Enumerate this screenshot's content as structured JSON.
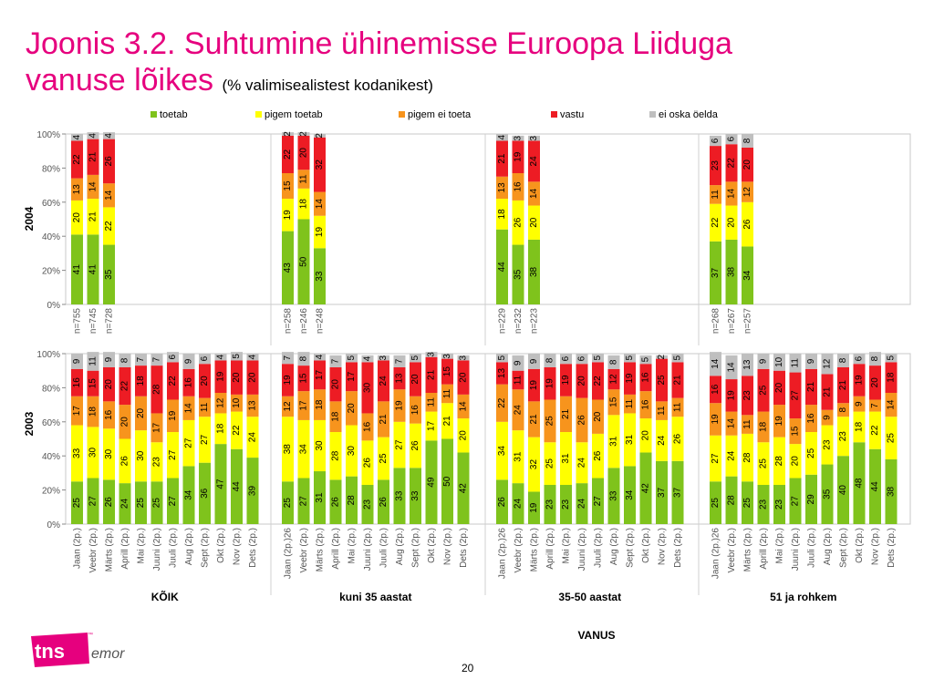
{
  "title": {
    "line1": "Joonis 3.2. Suhtumine ühinemisse Euroopa Liiduga",
    "line2": "vanuse lõikes",
    "subtitle": "(% valimisealistest kodanikest)"
  },
  "page_number": "20",
  "logo": {
    "main": "tns",
    "sub": "emor",
    "tm": "™"
  },
  "colors": {
    "toetab": "#7fc31c",
    "pigem_toetab": "#ffff00",
    "pigem_ei_toeta": "#f7941d",
    "vastu": "#ed1c24",
    "ei_oska": "#bfbfbf",
    "title": "#e6007e"
  },
  "chart_data": [
    {
      "type": "bar",
      "stacked": true,
      "row_label": "2004",
      "ylim": [
        0,
        100
      ],
      "yticks": [
        "0%",
        "20%",
        "40%",
        "60%",
        "80%",
        "100%"
      ],
      "legend": [
        "toetab",
        "pigem toetab",
        "pigem ei toeta",
        "vastu",
        "ei oska öelda"
      ],
      "groups": [
        {
          "name": "KÕIK",
          "bars": [
            {
              "label": "n=755",
              "values": [
                41,
                20,
                13,
                22,
                4
              ]
            },
            {
              "label": "n=745",
              "values": [
                41,
                21,
                14,
                21,
                4
              ]
            },
            {
              "label": "n=728",
              "values": [
                35,
                22,
                14,
                26,
                4
              ]
            }
          ]
        },
        {
          "name": "kuni 35 aastat",
          "bars": [
            {
              "label": "n=258",
              "values": [
                43,
                19,
                15,
                22,
                2
              ]
            },
            {
              "label": "n=246",
              "values": [
                50,
                18,
                11,
                20,
                2
              ]
            },
            {
              "label": "n=248",
              "values": [
                33,
                19,
                14,
                32,
                2
              ]
            }
          ]
        },
        {
          "name": "35-50 aastat",
          "bars": [
            {
              "label": "n=229",
              "values": [
                44,
                18,
                13,
                21,
                4
              ]
            },
            {
              "label": "n=232",
              "values": [
                35,
                26,
                16,
                19,
                3
              ]
            },
            {
              "label": "n=223",
              "values": [
                38,
                20,
                14,
                24,
                3
              ]
            }
          ]
        },
        {
          "name": "51 ja rohkem",
          "bars": [
            {
              "label": "n=268",
              "values": [
                37,
                22,
                11,
                23,
                6
              ]
            },
            {
              "label": "n=267",
              "values": [
                38,
                20,
                14,
                22,
                6
              ]
            },
            {
              "label": "n=257",
              "values": [
                34,
                26,
                12,
                20,
                8
              ]
            }
          ]
        }
      ]
    },
    {
      "type": "bar",
      "stacked": true,
      "row_label": "2003",
      "ylim": [
        0,
        100
      ],
      "yticks": [
        "0%",
        "20%",
        "40%",
        "60%",
        "80%",
        "100%"
      ],
      "groups": [
        {
          "name": "KÕIK",
          "bars": [
            {
              "label": "Jaan (2p.)",
              "values": [
                25,
                33,
                17,
                16,
                9
              ]
            },
            {
              "label": "Veebr (2p.)",
              "values": [
                27,
                30,
                18,
                15,
                11
              ]
            },
            {
              "label": "Märts (2p.)",
              "values": [
                26,
                30,
                16,
                20,
                9
              ]
            },
            {
              "label": "Aprill (2p.)",
              "values": [
                24,
                26,
                20,
                22,
                8
              ]
            },
            {
              "label": "Mai (2p.)",
              "values": [
                25,
                30,
                20,
                18,
                7
              ]
            },
            {
              "label": "Juuni (2p.)",
              "values": [
                25,
                23,
                17,
                28,
                7
              ]
            },
            {
              "label": "Juuli (2p.)",
              "values": [
                27,
                27,
                19,
                22,
                6
              ]
            },
            {
              "label": "Aug (2p.)",
              "values": [
                34,
                27,
                14,
                16,
                9
              ]
            },
            {
              "label": "Sept (2p.)",
              "values": [
                36,
                27,
                11,
                20,
                6
              ]
            },
            {
              "label": "Okt (2p.)",
              "values": [
                47,
                18,
                12,
                19,
                4
              ]
            },
            {
              "label": "Nov (2p.)",
              "values": [
                44,
                22,
                10,
                20,
                5
              ]
            },
            {
              "label": "Dets (2p.)",
              "values": [
                39,
                24,
                13,
                20,
                4
              ]
            }
          ]
        },
        {
          "name": "kuni 35 aastat",
          "bars": [
            {
              "label": "Jaan (2p.)26",
              "values": [
                25,
                38,
                12,
                19,
                7
              ]
            },
            {
              "label": "Veebr (2p.)",
              "values": [
                27,
                34,
                17,
                15,
                8
              ]
            },
            {
              "label": "Märts (2p.)",
              "values": [
                31,
                30,
                18,
                17,
                4
              ]
            },
            {
              "label": "Aprill (2p.)",
              "values": [
                26,
                28,
                18,
                20,
                7
              ]
            },
            {
              "label": "Mai (2p.)",
              "values": [
                28,
                30,
                20,
                17,
                5
              ]
            },
            {
              "label": "Juuni (2p.)",
              "values": [
                23,
                26,
                16,
                30,
                4
              ]
            },
            {
              "label": "Juuli (2p.)",
              "values": [
                26,
                25,
                21,
                24,
                3
              ]
            },
            {
              "label": "Aug (2p.)",
              "values": [
                33,
                27,
                19,
                13,
                7
              ]
            },
            {
              "label": "Sept (2p.)",
              "values": [
                33,
                26,
                16,
                20,
                5
              ]
            },
            {
              "label": "Okt (2p.)",
              "values": [
                49,
                17,
                11,
                21,
                3
              ]
            },
            {
              "label": "Nov (2p.)",
              "values": [
                50,
                21,
                11,
                15,
                3
              ]
            },
            {
              "label": "Dets (2p.)",
              "values": [
                42,
                20,
                14,
                20,
                3
              ]
            }
          ]
        },
        {
          "name": "35-50 aastat",
          "bars": [
            {
              "label": "Jaan (2p.)26",
              "values": [
                26,
                34,
                22,
                13,
                5
              ]
            },
            {
              "label": "Veebr (2p.)",
              "values": [
                24,
                31,
                24,
                11,
                9
              ]
            },
            {
              "label": "Märts (2p.)",
              "values": [
                19,
                32,
                21,
                19,
                9
              ]
            },
            {
              "label": "Aprill (2p.)",
              "values": [
                23,
                25,
                25,
                19,
                8
              ]
            },
            {
              "label": "Mai (2p.)",
              "values": [
                23,
                31,
                21,
                19,
                6
              ]
            },
            {
              "label": "Juuni (2p.)",
              "values": [
                24,
                24,
                26,
                20,
                6
              ]
            },
            {
              "label": "Juuli (2p.)",
              "values": [
                27,
                26,
                20,
                22,
                5
              ]
            },
            {
              "label": "Aug (2p.)",
              "values": [
                33,
                31,
                15,
                12,
                8
              ]
            },
            {
              "label": "Sept (2p.)",
              "values": [
                34,
                31,
                11,
                19,
                5
              ]
            },
            {
              "label": "Okt (2p.)",
              "values": [
                42,
                20,
                16,
                16,
                5
              ]
            },
            {
              "label": "Nov (2p.)",
              "values": [
                37,
                24,
                11,
                25,
                2
              ]
            },
            {
              "label": "Dets (2p.)",
              "values": [
                37,
                26,
                11,
                21,
                5
              ]
            }
          ]
        },
        {
          "name": "51 ja rohkem",
          "bars": [
            {
              "label": "Jaan (2p.)26",
              "values": [
                25,
                27,
                19,
                16,
                14
              ]
            },
            {
              "label": "Veebr (2p.)",
              "values": [
                28,
                24,
                14,
                19,
                14
              ]
            },
            {
              "label": "Märts (2p.)",
              "values": [
                25,
                28,
                11,
                23,
                13
              ]
            },
            {
              "label": "Aprill (2p.)",
              "values": [
                23,
                25,
                18,
                25,
                9
              ]
            },
            {
              "label": "Mai (2p.)",
              "values": [
                23,
                28,
                19,
                20,
                10
              ]
            },
            {
              "label": "Juuni (2p.)",
              "values": [
                27,
                20,
                15,
                27,
                11
              ]
            },
            {
              "label": "Juuli (2p.)",
              "values": [
                29,
                25,
                16,
                21,
                9
              ]
            },
            {
              "label": "Aug (2p.)",
              "values": [
                35,
                23,
                9,
                21,
                12
              ]
            },
            {
              "label": "Sept (2p.)",
              "values": [
                40,
                23,
                8,
                21,
                8
              ]
            },
            {
              "label": "Okt (2p.)",
              "values": [
                48,
                18,
                9,
                19,
                6
              ]
            },
            {
              "label": "Nov (2p.)",
              "values": [
                44,
                22,
                7,
                20,
                8
              ]
            },
            {
              "label": "Dets (2p.)",
              "values": [
                38,
                25,
                14,
                18,
                5
              ]
            }
          ]
        }
      ],
      "xlabel": "VANUS"
    }
  ]
}
